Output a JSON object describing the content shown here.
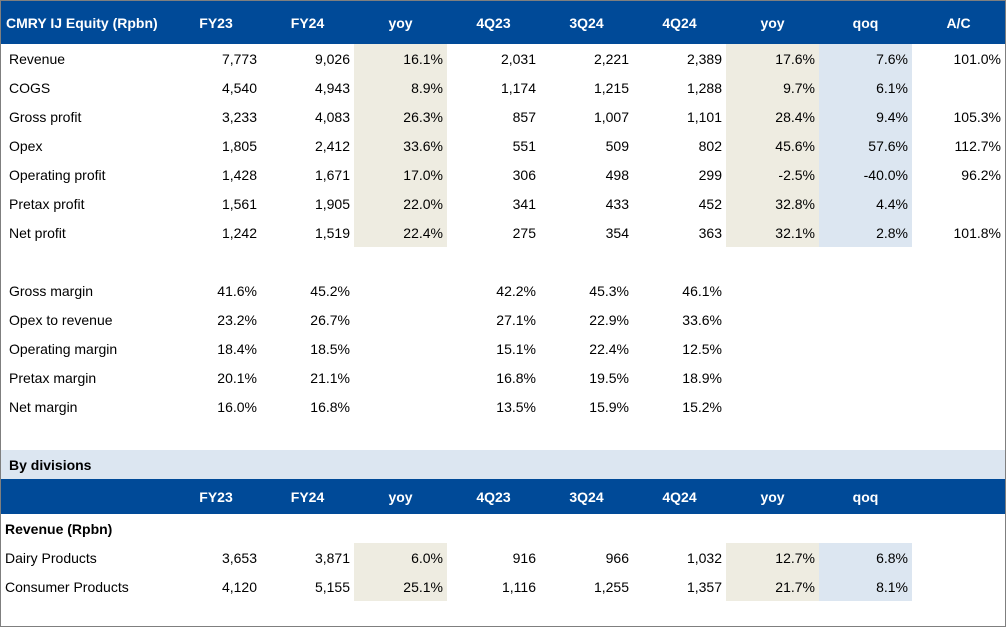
{
  "main_table": {
    "headers": [
      "CMRY IJ Equity (Rpbn)",
      "FY23",
      "FY24",
      "yoy",
      "4Q23",
      "3Q24",
      "4Q24",
      "yoy",
      "qoq",
      "A/C"
    ],
    "rows": [
      {
        "label": "Revenue",
        "cells": [
          "7,773",
          "9,026",
          "16.1%",
          "2,031",
          "2,221",
          "2,389",
          "17.6%",
          "7.6%",
          "101.0%"
        ]
      },
      {
        "label": "COGS",
        "cells": [
          "4,540",
          "4,943",
          "8.9%",
          "1,174",
          "1,215",
          "1,288",
          "9.7%",
          "6.1%",
          ""
        ]
      },
      {
        "label": "Gross profit",
        "cells": [
          "3,233",
          "4,083",
          "26.3%",
          "857",
          "1,007",
          "1,101",
          "28.4%",
          "9.4%",
          "105.3%"
        ]
      },
      {
        "label": "Opex",
        "cells": [
          "1,805",
          "2,412",
          "33.6%",
          "551",
          "509",
          "802",
          "45.6%",
          "57.6%",
          "112.7%"
        ]
      },
      {
        "label": "Operating profit",
        "cells": [
          "1,428",
          "1,671",
          "17.0%",
          "306",
          "498",
          "299",
          "-2.5%",
          "-40.0%",
          "96.2%"
        ]
      },
      {
        "label": "Pretax profit",
        "cells": [
          "1,561",
          "1,905",
          "22.0%",
          "341",
          "433",
          "452",
          "32.8%",
          "4.4%",
          ""
        ]
      },
      {
        "label": "Net profit",
        "cells": [
          "1,242",
          "1,519",
          "22.4%",
          "275",
          "354",
          "363",
          "32.1%",
          "2.8%",
          "101.8%"
        ]
      }
    ]
  },
  "margins": {
    "rows": [
      {
        "label": "Gross margin",
        "cells": [
          "41.6%",
          "45.2%",
          "",
          "42.2%",
          "45.3%",
          "46.1%"
        ]
      },
      {
        "label": "Opex to revenue",
        "cells": [
          "23.2%",
          "26.7%",
          "",
          "27.1%",
          "22.9%",
          "33.6%"
        ]
      },
      {
        "label": "Operating margin",
        "cells": [
          "18.4%",
          "18.5%",
          "",
          "15.1%",
          "22.4%",
          "12.5%"
        ]
      },
      {
        "label": "Pretax margin",
        "cells": [
          "20.1%",
          "21.1%",
          "",
          "16.8%",
          "19.5%",
          "18.9%"
        ]
      },
      {
        "label": "Net margin",
        "cells": [
          "16.0%",
          "16.8%",
          "",
          "13.5%",
          "15.9%",
          "15.2%"
        ]
      }
    ]
  },
  "divisions": {
    "section_title": "By divisions",
    "headers": [
      "",
      "FY23",
      "FY24",
      "yoy",
      "4Q23",
      "3Q24",
      "4Q24",
      "yoy",
      "qoq",
      ""
    ],
    "subheading": "Revenue (Rpbn)",
    "rows": [
      {
        "label": "Dairy Products",
        "cells": [
          "3,653",
          "3,871",
          "6.0%",
          "916",
          "966",
          "1,032",
          "12.7%",
          "6.8%",
          ""
        ]
      },
      {
        "label": "Consumer Products",
        "cells": [
          "4,120",
          "5,155",
          "25.1%",
          "1,116",
          "1,255",
          "1,357",
          "21.7%",
          "8.1%",
          ""
        ]
      }
    ]
  },
  "colors": {
    "header_bg": "#004a98",
    "section_bg": "#dce6f1",
    "yoy_highlight": "#eeece1",
    "qoq_highlight": "#dce6f1"
  }
}
